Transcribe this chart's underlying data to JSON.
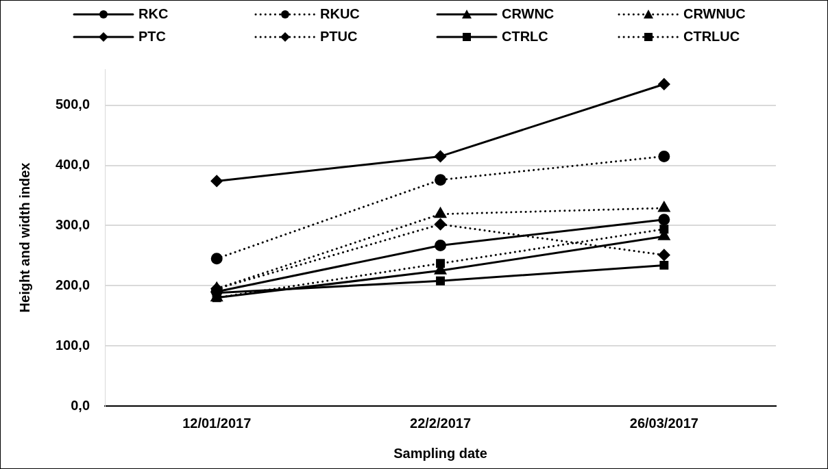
{
  "chart_data": {
    "type": "line",
    "xlabel": "Sampling date",
    "ylabel": "Height and width index",
    "categories": [
      "12/01/2017",
      "22/2/2017",
      "26/03/2017"
    ],
    "series": [
      {
        "name": "RKC",
        "color": "#000000",
        "marker": "circle",
        "line_style": "solid",
        "values": [
          190,
          267,
          310
        ]
      },
      {
        "name": "RKUC",
        "color": "#000000",
        "marker": "circle",
        "line_style": "dotted",
        "values": [
          245,
          376,
          415
        ]
      },
      {
        "name": "CRWNC",
        "color": "#000000",
        "marker": "triangle",
        "line_style": "solid",
        "values": [
          180,
          225,
          282
        ]
      },
      {
        "name": "CRWNUC",
        "color": "#000000",
        "marker": "triangle",
        "line_style": "dotted",
        "values": [
          195,
          319,
          329
        ]
      },
      {
        "name": "PTC",
        "color": "#000000",
        "marker": "diamond",
        "line_style": "solid",
        "values": [
          374,
          415,
          535
        ]
      },
      {
        "name": "PTUC",
        "color": "#000000",
        "marker": "diamond",
        "line_style": "dotted",
        "values": [
          195,
          302,
          251
        ]
      },
      {
        "name": "CTRLC",
        "color": "#000000",
        "marker": "square",
        "line_style": "solid",
        "values": [
          188,
          208,
          234
        ]
      },
      {
        "name": "CTRLUC",
        "color": "#000000",
        "marker": "square",
        "line_style": "dotted",
        "values": [
          180,
          237,
          294
        ]
      }
    ],
    "ylim": [
      0,
      560
    ],
    "yticks": [
      {
        "value": 0,
        "label": "0,0"
      },
      {
        "value": 100,
        "label": "100,0"
      },
      {
        "value": 200,
        "label": "200,0"
      },
      {
        "value": 300,
        "label": "300,0"
      },
      {
        "value": 400,
        "label": "400,0"
      },
      {
        "value": 500,
        "label": "500,0"
      }
    ],
    "grid": "y",
    "legend": "top"
  }
}
